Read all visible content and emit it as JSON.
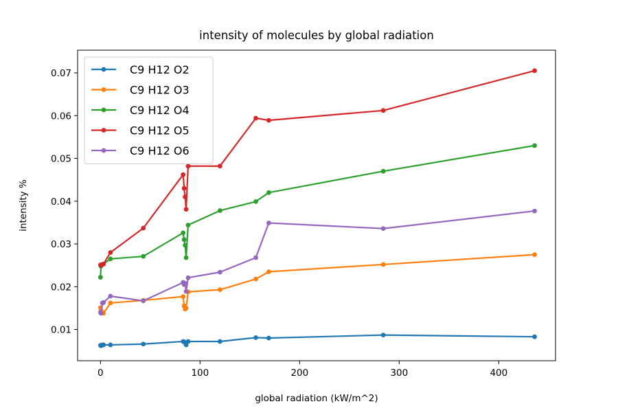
{
  "chart_data": {
    "type": "line",
    "title": "intensity of molecules by global radiation",
    "xlabel": "global radiation (kW/m^2)",
    "ylabel": "intensity %",
    "xlim": [
      -23,
      457
    ],
    "ylim": [
      0.0027,
      0.0753
    ],
    "xticks": [
      0,
      100,
      200,
      300,
      400
    ],
    "xtick_labels": [
      "0",
      "100",
      "200",
      "300",
      "400"
    ],
    "yticks": [
      0.01,
      0.02,
      0.03,
      0.04,
      0.05,
      0.06,
      0.07
    ],
    "ytick_labels": [
      "0.01",
      "0.02",
      "0.03",
      "0.04",
      "0.05",
      "0.06",
      "0.07"
    ],
    "grid": false,
    "legend_position": "top-left",
    "series": [
      {
        "name": "C9 H12 O2",
        "color": "#1f77b4",
        "x": [
          0,
          0.5,
          2,
          3,
          10,
          43,
          83,
          84,
          85,
          86,
          88,
          120,
          156,
          169,
          284,
          436
        ],
        "y": [
          0.0063,
          0.0062,
          0.0064,
          0.0064,
          0.0064,
          0.0066,
          0.0072,
          0.0071,
          0.0069,
          0.0064,
          0.0072,
          0.0072,
          0.0081,
          0.008,
          0.0087,
          0.0083
        ]
      },
      {
        "name": "C9 H12 O3",
        "color": "#ff7f0e",
        "x": [
          0,
          0.5,
          2,
          3,
          10,
          43,
          83,
          84,
          85,
          86,
          88,
          120,
          156,
          169,
          284,
          436
        ],
        "y": [
          0.0151,
          0.0145,
          0.014,
          0.0138,
          0.0162,
          0.0168,
          0.0177,
          0.0155,
          0.0148,
          0.015,
          0.0188,
          0.0193,
          0.0218,
          0.0235,
          0.0252,
          0.0275
        ]
      },
      {
        "name": "C9 H12 O4",
        "color": "#2ca02c",
        "x": [
          0,
          0.5,
          2,
          3,
          10,
          43,
          83,
          84,
          85,
          86,
          88,
          120,
          156,
          169,
          284,
          436
        ],
        "y": [
          0.0222,
          0.0248,
          0.0252,
          0.0253,
          0.0265,
          0.0271,
          0.0326,
          0.031,
          0.0297,
          0.0268,
          0.0344,
          0.0378,
          0.0399,
          0.042,
          0.047,
          0.053
        ]
      },
      {
        "name": "C9 H12 O5",
        "color": "#d62728",
        "x": [
          0,
          0.5,
          2,
          3,
          10,
          43,
          83,
          84,
          85,
          86,
          88,
          120,
          156,
          169,
          284,
          436
        ],
        "y": [
          0.0251,
          0.025,
          0.0252,
          0.0253,
          0.028,
          0.0337,
          0.0462,
          0.043,
          0.041,
          0.0381,
          0.0482,
          0.0482,
          0.0594,
          0.0589,
          0.0612,
          0.0705
        ]
      },
      {
        "name": "C9 H12 O6",
        "color": "#9467bd",
        "x": [
          0,
          0.5,
          2,
          3,
          10,
          43,
          83,
          84,
          85,
          86,
          88,
          120,
          156,
          169,
          284,
          436
        ],
        "y": [
          0.014,
          0.0138,
          0.0162,
          0.0163,
          0.0178,
          0.0167,
          0.021,
          0.0205,
          0.0208,
          0.0189,
          0.0221,
          0.0234,
          0.0268,
          0.0349,
          0.0336,
          0.0377
        ]
      }
    ]
  }
}
